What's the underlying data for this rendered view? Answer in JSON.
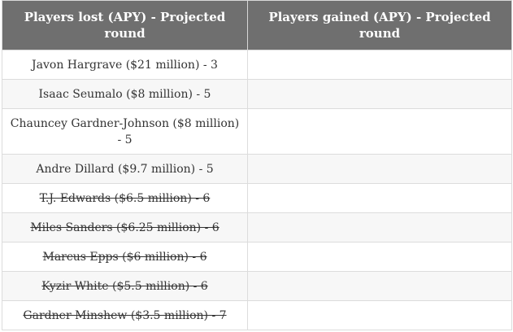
{
  "table": {
    "headers": [
      "Players lost (APY) - Projected round",
      "Players gained (APY) - Projected round"
    ],
    "rows": [
      {
        "lost": "Javon Hargrave ($21 million) - 3",
        "gained": ""
      },
      {
        "lost": "Isaac Seumalo ($8 million) - 5",
        "gained": ""
      },
      {
        "lost": "Chauncey Gardner-Johnson ($8 million) - 5",
        "gained": ""
      },
      {
        "lost": "Andre Dillard ($9.7 million) - 5",
        "gained": ""
      },
      {
        "lost": "T.J. Edwards ($6.5 million) - 6",
        "gained": "",
        "struck": true
      },
      {
        "lost": "Miles Sanders ($6.25 million) - 6",
        "gained": "",
        "struck": true
      },
      {
        "lost": "Marcus Epps ($6 million) - 6",
        "gained": "",
        "struck": true
      },
      {
        "lost": "Kyzir White ($5.5 million) - 6",
        "gained": "",
        "struck": true
      },
      {
        "lost": "Gardner Minshew ($3.5 million) - 7",
        "gained": "",
        "struck": true
      }
    ]
  }
}
